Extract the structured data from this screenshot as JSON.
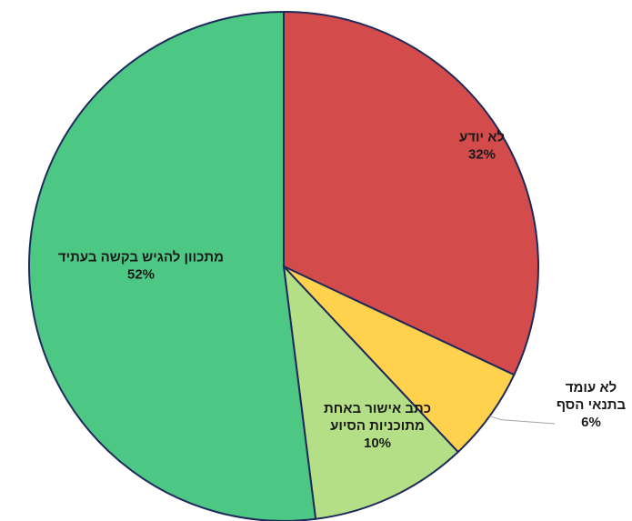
{
  "chart_data": {
    "type": "pie",
    "title": "",
    "legend": "none",
    "slices": [
      {
        "label_lines": [
          "לא יודע"
        ],
        "value": 32,
        "value_label": "32%",
        "color": "#d34b4b"
      },
      {
        "label_lines": [
          "לא עומד",
          "בתנאי הסף"
        ],
        "value": 6,
        "value_label": "6%",
        "color": "#ffd14d"
      },
      {
        "label_lines": [
          "כתב אישור  באחת",
          "מתוכניות הסיוע"
        ],
        "value": 10,
        "value_label": "10%",
        "color": "#b5df86"
      },
      {
        "label_lines": [
          "מתכוון להגיש בקשה בעתיד"
        ],
        "value": 52,
        "value_label": "52%",
        "color": "#4cc784"
      }
    ]
  }
}
